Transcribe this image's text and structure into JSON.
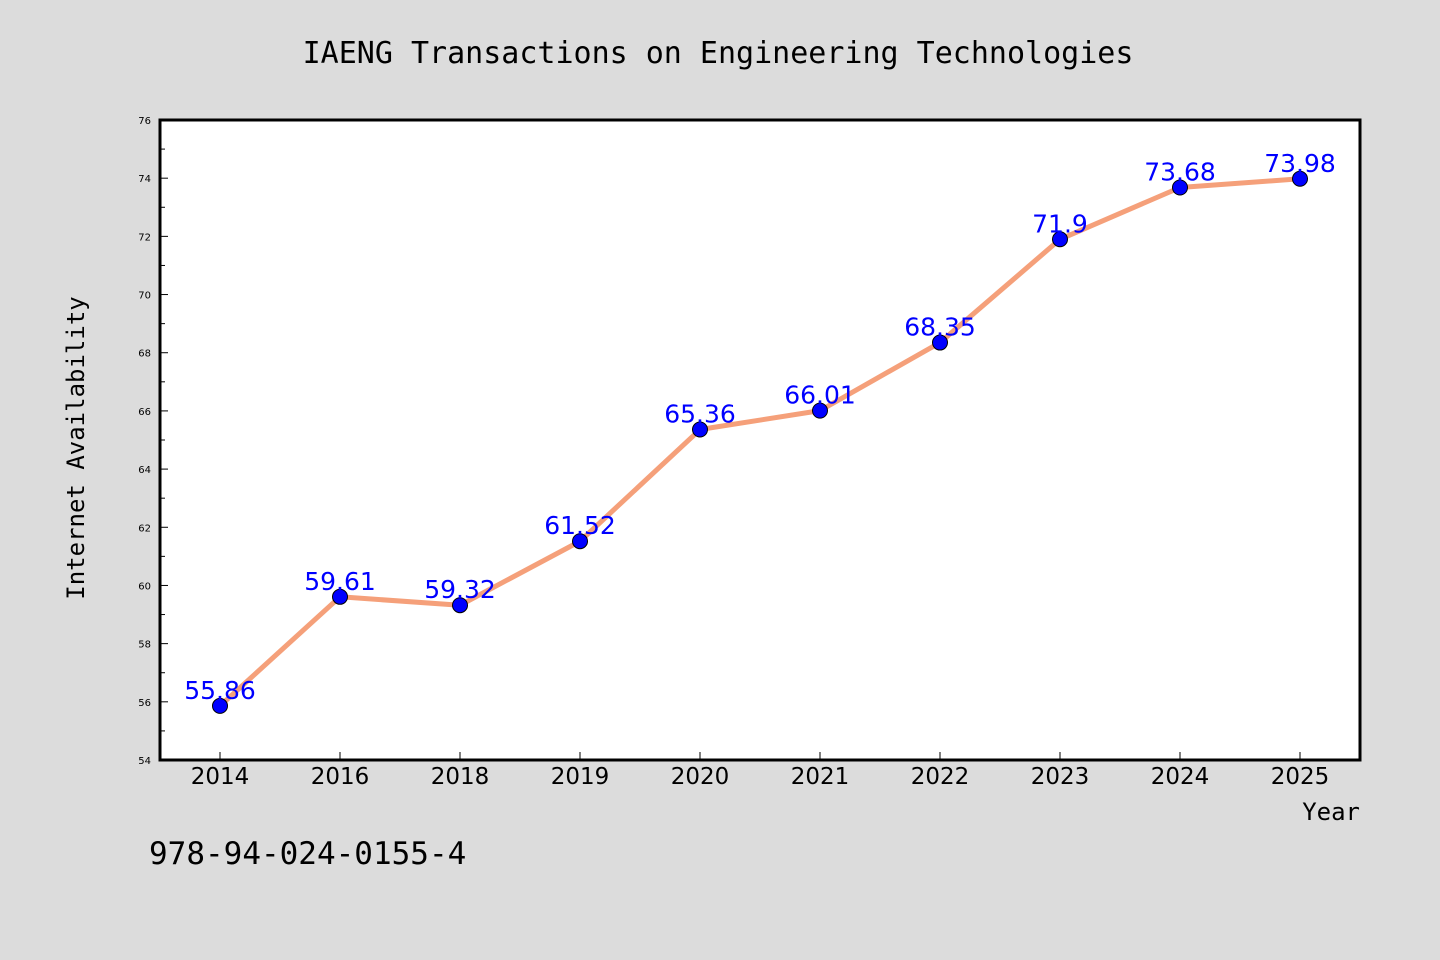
{
  "chart_data": {
    "type": "line",
    "title": "IAENG Transactions on Engineering Technologies",
    "xlabel": "Year",
    "ylabel": "Internet Availability",
    "categories": [
      "2014",
      "2016",
      "2018",
      "2019",
      "2020",
      "2021",
      "2022",
      "2023",
      "2024",
      "2025"
    ],
    "series": [
      {
        "values": [
          55.86,
          59.61,
          59.32,
          61.52,
          65.36,
          66.01,
          68.35,
          71.9,
          73.68,
          73.98
        ],
        "labels": [
          "55.86",
          "59.61",
          "59.32",
          "61.52",
          "65.36",
          "66.01",
          "68.35",
          "71.9",
          "73.68",
          "73.98"
        ]
      }
    ],
    "ylim": [
      54,
      76
    ],
    "yticks": [
      "54",
      "56",
      "58",
      "60",
      "62",
      "64",
      "66",
      "68",
      "70",
      "72",
      "74",
      "76"
    ],
    "grid": false,
    "legend": "none",
    "colors": {
      "line": "#f5a07a",
      "marker": "#0000ff",
      "label": "#0000ff"
    }
  },
  "footer": {
    "text": "978-94-024-0155-4"
  }
}
